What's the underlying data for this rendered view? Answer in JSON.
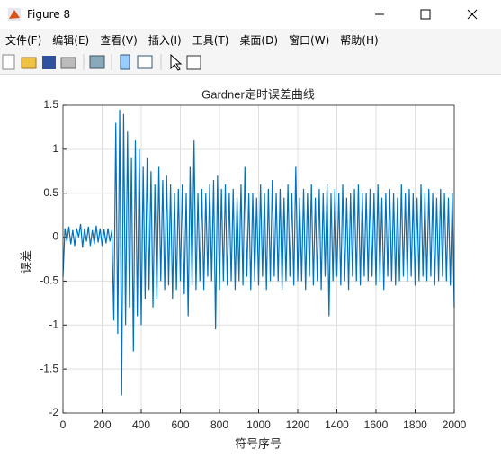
{
  "window": {
    "title": "Figure 8"
  },
  "menu": [
    "文件(F)",
    "编辑(E)",
    "查看(V)",
    "插入(I)",
    "工具(T)",
    "桌面(D)",
    "窗口(W)",
    "帮助(H)"
  ],
  "chart_data": {
    "type": "line",
    "title": "Gardner定时误差曲线",
    "x_label": "符号序号",
    "y_label": "误差",
    "xlim": [
      0,
      2000
    ],
    "ylim": [
      -2,
      1.5
    ],
    "xticks": [
      0,
      200,
      400,
      600,
      800,
      1000,
      1200,
      1400,
      1600,
      1800,
      2000
    ],
    "yticks": [
      -2,
      -1.5,
      -1,
      -0.5,
      0,
      0.5,
      1,
      1.5
    ],
    "grid": true,
    "series": [
      {
        "color": "#0072bd",
        "x": [
          0,
          10,
          20,
          30,
          40,
          50,
          60,
          70,
          80,
          90,
          100,
          110,
          120,
          130,
          140,
          150,
          160,
          170,
          180,
          190,
          200,
          210,
          220,
          230,
          240,
          250,
          260,
          270,
          280,
          290,
          300,
          310,
          320,
          330,
          340,
          350,
          360,
          370,
          380,
          390,
          400,
          410,
          420,
          430,
          440,
          450,
          460,
          470,
          480,
          490,
          500,
          510,
          520,
          530,
          540,
          550,
          560,
          570,
          580,
          590,
          600,
          610,
          620,
          630,
          640,
          650,
          660,
          670,
          680,
          690,
          700,
          710,
          720,
          730,
          740,
          750,
          760,
          770,
          780,
          790,
          800,
          810,
          820,
          830,
          840,
          850,
          860,
          870,
          880,
          890,
          900,
          910,
          920,
          930,
          940,
          950,
          960,
          970,
          980,
          990,
          1000,
          1010,
          1020,
          1030,
          1040,
          1050,
          1060,
          1070,
          1080,
          1090,
          1100,
          1110,
          1120,
          1130,
          1140,
          1150,
          1160,
          1170,
          1180,
          1190,
          1200,
          1210,
          1220,
          1230,
          1240,
          1250,
          1260,
          1270,
          1280,
          1290,
          1300,
          1310,
          1320,
          1330,
          1340,
          1350,
          1360,
          1370,
          1380,
          1390,
          1400,
          1410,
          1420,
          1430,
          1440,
          1450,
          1460,
          1470,
          1480,
          1490,
          1500,
          1510,
          1520,
          1530,
          1540,
          1550,
          1560,
          1570,
          1580,
          1590,
          1600,
          1610,
          1620,
          1630,
          1640,
          1650,
          1660,
          1670,
          1680,
          1690,
          1700,
          1710,
          1720,
          1730,
          1740,
          1750,
          1760,
          1770,
          1780,
          1790,
          1800,
          1810,
          1820,
          1830,
          1840,
          1850,
          1860,
          1870,
          1880,
          1890,
          1900,
          1910,
          1920,
          1930,
          1940,
          1950,
          1960,
          1970,
          1980,
          1990,
          2000
        ],
        "values": [
          -0.45,
          0.1,
          -0.05,
          0.12,
          -0.08,
          0.08,
          -0.1,
          0.1,
          0.0,
          0.15,
          -0.12,
          0.1,
          -0.05,
          0.12,
          -0.1,
          0.08,
          -0.08,
          0.13,
          -0.06,
          0.1,
          -0.1,
          0.09,
          -0.07,
          0.1,
          -0.05,
          0.08,
          -0.95,
          1.3,
          -1.1,
          1.45,
          -1.8,
          1.4,
          -1.0,
          1.2,
          -0.8,
          0.9,
          -1.3,
          1.1,
          -0.9,
          1.0,
          -1.0,
          0.8,
          -0.7,
          0.9,
          -0.6,
          0.75,
          -0.8,
          0.6,
          -0.7,
          0.8,
          -0.5,
          0.65,
          -0.6,
          0.7,
          -0.55,
          0.6,
          -0.7,
          0.5,
          -0.6,
          0.55,
          -0.5,
          0.6,
          -0.65,
          0.5,
          -0.9,
          0.8,
          -0.55,
          1.1,
          -0.6,
          0.5,
          -0.5,
          0.55,
          -0.6,
          0.5,
          -0.45,
          0.6,
          -0.5,
          0.65,
          -1.05,
          0.7,
          -0.6,
          0.55,
          -0.5,
          0.6,
          -0.55,
          0.5,
          -0.5,
          0.55,
          -0.6,
          0.45,
          -0.5,
          0.6,
          -0.55,
          0.8,
          -0.45,
          0.5,
          -0.6,
          0.5,
          -0.5,
          0.45,
          -0.55,
          0.6,
          -0.45,
          0.5,
          -0.6,
          0.55,
          -0.5,
          0.65,
          -0.45,
          0.5,
          -0.5,
          0.55,
          -0.6,
          0.45,
          -0.5,
          0.6,
          -0.45,
          0.5,
          -0.55,
          0.8,
          -0.5,
          0.45,
          -0.5,
          0.55,
          -0.6,
          0.5,
          -0.45,
          0.6,
          -0.55,
          0.45,
          -0.5,
          0.55,
          -0.6,
          0.5,
          -0.45,
          0.6,
          -0.9,
          0.5,
          -0.5,
          0.55,
          -0.45,
          0.5,
          -0.55,
          0.6,
          -0.5,
          0.45,
          -0.6,
          0.5,
          -0.45,
          0.55,
          -0.5,
          0.6,
          -0.55,
          0.5,
          -0.45,
          0.5,
          -0.5,
          0.55,
          -0.45,
          0.5,
          -0.55,
          0.6,
          -0.5,
          0.45,
          -0.6,
          0.5,
          -0.45,
          0.55,
          -0.5,
          0.5,
          -0.55,
          0.45,
          -0.5,
          0.6,
          -0.45,
          0.5,
          -0.5,
          0.55,
          -0.45,
          0.5,
          -0.55,
          0.45,
          -0.5,
          0.6,
          -0.45,
          0.5,
          -0.5,
          0.55,
          -0.45,
          0.5,
          -0.55,
          0.45,
          -0.5,
          0.55,
          -0.45,
          0.5,
          -0.5,
          0.45,
          -0.55,
          0.5,
          -0.8
        ]
      }
    ]
  }
}
